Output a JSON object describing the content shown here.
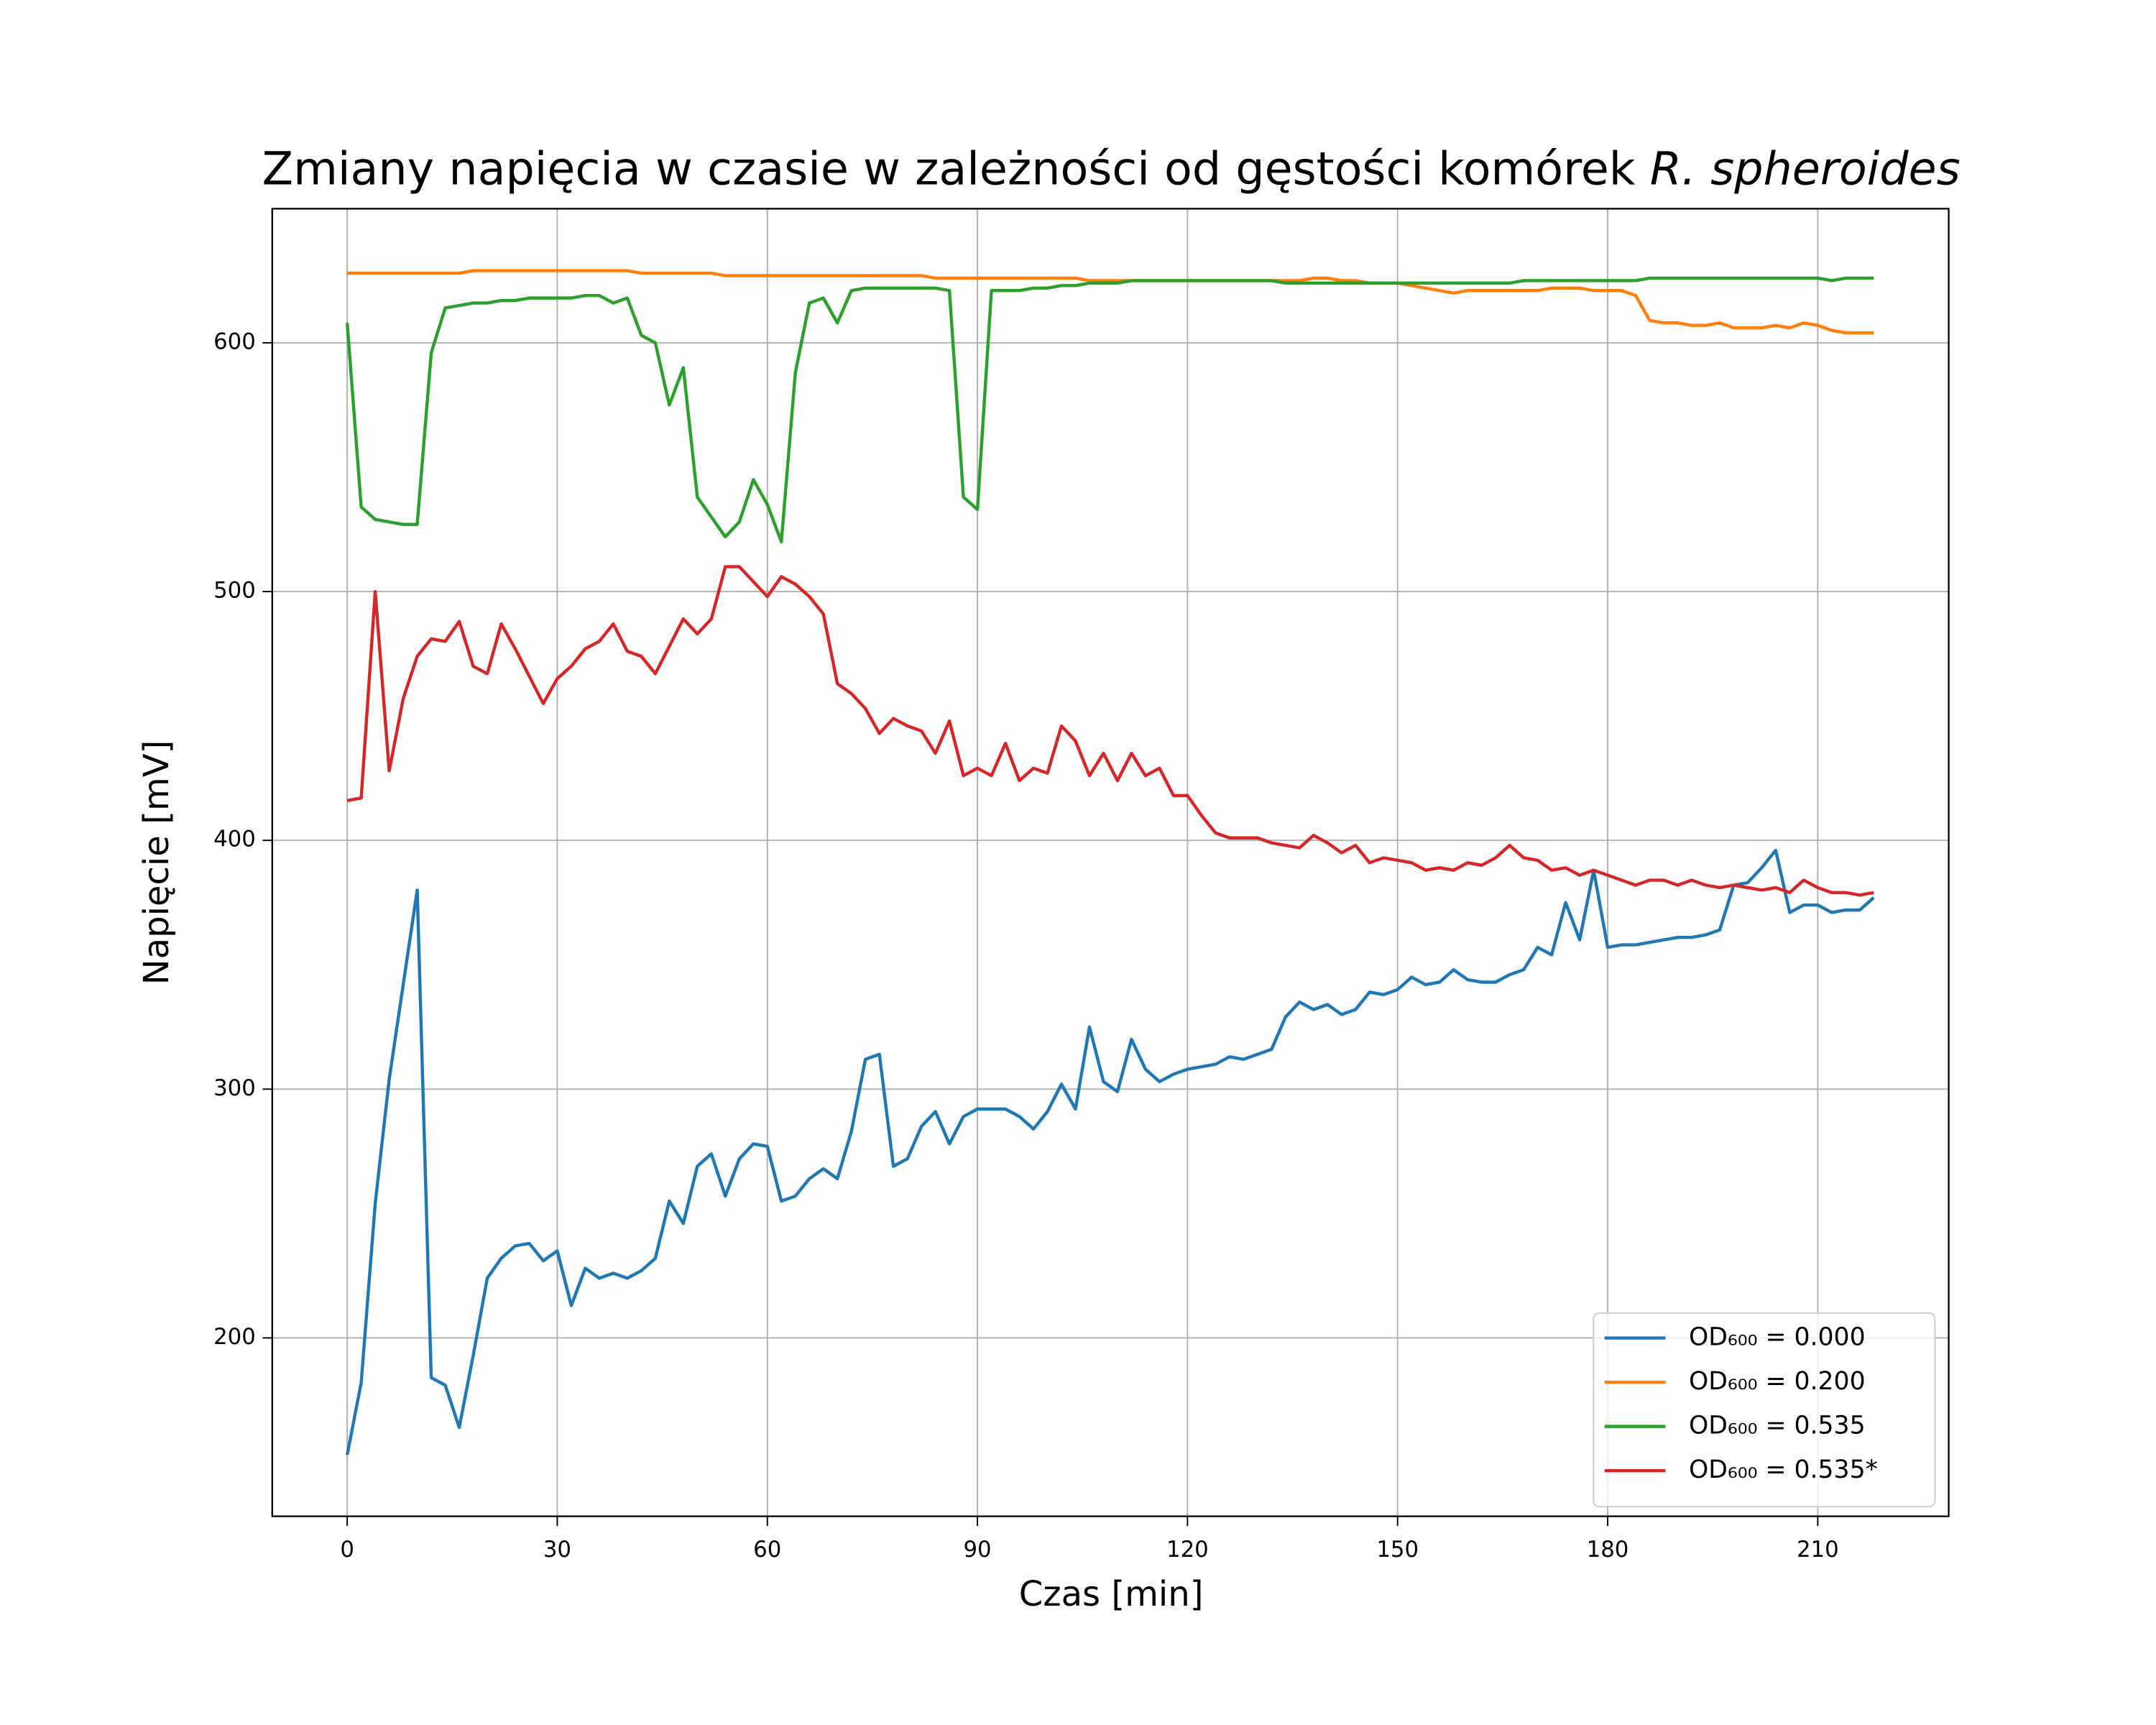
{
  "chart_data": {
    "type": "line",
    "title": [
      "Zmiany napięcia w czasie w zależności od gęstości komórek",
      "R. spheroides"
    ],
    "x_label": "Czas [min]",
    "y_label": "Napięcie [mV]",
    "xlim": [
      -10.7,
      228.7
    ],
    "ylim": [
      128.3,
      653.9
    ],
    "xticks": [
      0,
      30,
      60,
      90,
      120,
      150,
      180,
      210
    ],
    "yticks": [
      200,
      300,
      400,
      500,
      600
    ],
    "grid": true,
    "legend": "lower right",
    "x": [
      0,
      2,
      4,
      6,
      8,
      10,
      12,
      14,
      16,
      18,
      20,
      22,
      24,
      26,
      28,
      30,
      32,
      34,
      36,
      38,
      40,
      42,
      44,
      46,
      48,
      50,
      52,
      54,
      56,
      58,
      60,
      62,
      64,
      66,
      68,
      70,
      72,
      74,
      76,
      78,
      80,
      82,
      84,
      86,
      88,
      90,
      92,
      94,
      96,
      98,
      100,
      102,
      104,
      106,
      108,
      110,
      112,
      114,
      116,
      118,
      120,
      122,
      124,
      126,
      128,
      130,
      132,
      134,
      136,
      138,
      140,
      142,
      144,
      146,
      148,
      150,
      152,
      154,
      156,
      158,
      160,
      162,
      164,
      166,
      168,
      170,
      172,
      174,
      176,
      178,
      180,
      182,
      184,
      186,
      188,
      190,
      192,
      194,
      196,
      198,
      200,
      202,
      204,
      206,
      208,
      210,
      212,
      214,
      216,
      218
    ],
    "series": [
      {
        "name": "OD₆₀₀ = 0.000",
        "color": "#1f77b4",
        "values": [
          153,
          182,
          254,
          304,
          342,
          380,
          184,
          181,
          164,
          193,
          224,
          232,
          237,
          238,
          231,
          235,
          213,
          228,
          224,
          226,
          224,
          227,
          232,
          255,
          246,
          269,
          274,
          257,
          272,
          278,
          277,
          255,
          257,
          264,
          268,
          264,
          283,
          312,
          314,
          269,
          272,
          285,
          291,
          278,
          289,
          292,
          292,
          292,
          289,
          284,
          291,
          302,
          292,
          325,
          303,
          299,
          320,
          308,
          303,
          306,
          308,
          309,
          310,
          313,
          312,
          314,
          316,
          329,
          335,
          332,
          334,
          330,
          332,
          339,
          338,
          340,
          345,
          342,
          343,
          348,
          344,
          343,
          343,
          346,
          348,
          357,
          354,
          375,
          360,
          388,
          357,
          358,
          358,
          359,
          360,
          361,
          361,
          362,
          364,
          382,
          383,
          389,
          396,
          371,
          374,
          374,
          371,
          372,
          372,
          377
        ]
      },
      {
        "name": "OD₆₀₀ = 0.200",
        "color": "#ff7f0e",
        "values": [
          628,
          628,
          628,
          628,
          628,
          628,
          628,
          628,
          628,
          629,
          629,
          629,
          629,
          629,
          629,
          629,
          629,
          629,
          629,
          629,
          629,
          628,
          628,
          628,
          628,
          628,
          628,
          627,
          627,
          627,
          627,
          627,
          627,
          627,
          627,
          627,
          627,
          627,
          627,
          627,
          627,
          627,
          626,
          626,
          626,
          626,
          626,
          626,
          626,
          626,
          626,
          626,
          626,
          625,
          625,
          625,
          625,
          625,
          625,
          625,
          625,
          625,
          625,
          625,
          625,
          625,
          625,
          625,
          625,
          626,
          626,
          625,
          625,
          624,
          624,
          624,
          623,
          622,
          621,
          620,
          621,
          621,
          621,
          621,
          621,
          621,
          622,
          622,
          622,
          621,
          621,
          621,
          619,
          609,
          608,
          608,
          607,
          607,
          608,
          606,
          606,
          606,
          607,
          606,
          608,
          607,
          605,
          604,
          604,
          604
        ]
      },
      {
        "name": "OD₆₀₀ = 0.535",
        "color": "#2ca02c",
        "values": [
          608,
          534,
          529,
          528,
          527,
          527,
          596,
          614,
          615,
          616,
          616,
          617,
          617,
          618,
          618,
          618,
          618,
          619,
          619,
          616,
          618,
          603,
          600,
          575,
          590,
          538,
          530,
          522,
          528,
          545,
          535,
          520,
          588,
          616,
          618,
          608,
          621,
          622,
          622,
          622,
          622,
          622,
          622,
          621,
          538,
          533,
          621,
          621,
          621,
          622,
          622,
          623,
          623,
          624,
          624,
          624,
          625,
          625,
          625,
          625,
          625,
          625,
          625,
          625,
          625,
          625,
          625,
          624,
          624,
          624,
          624,
          624,
          624,
          624,
          624,
          624,
          624,
          624,
          624,
          624,
          624,
          624,
          624,
          624,
          625,
          625,
          625,
          625,
          625,
          625,
          625,
          625,
          625,
          626,
          626,
          626,
          626,
          626,
          626,
          626,
          626,
          626,
          626,
          626,
          626,
          626,
          625,
          626,
          626,
          626
        ]
      },
      {
        "name": "OD₆₀₀ = 0.535*",
        "color": "#d62728",
        "values": [
          416,
          417,
          500,
          428,
          457,
          474,
          481,
          480,
          488,
          470,
          467,
          487,
          477,
          466,
          455,
          465,
          470,
          477,
          480,
          487,
          476,
          474,
          467,
          478,
          489,
          483,
          489,
          510,
          510,
          504,
          498,
          506,
          503,
          498,
          491,
          463,
          459,
          453,
          443,
          449,
          446,
          444,
          435,
          448,
          426,
          429,
          426,
          439,
          424,
          429,
          427,
          446,
          440,
          426,
          435,
          424,
          435,
          426,
          429,
          418,
          418,
          410,
          403,
          401,
          401,
          401,
          399,
          398,
          397,
          402,
          399,
          395,
          398,
          391,
          393,
          392,
          391,
          388,
          389,
          388,
          391,
          390,
          393,
          398,
          393,
          392,
          388,
          389,
          386,
          388,
          386,
          384,
          382,
          384,
          384,
          382,
          384,
          382,
          381,
          382,
          381,
          380,
          381,
          379,
          384,
          381,
          379,
          379,
          378,
          379
        ]
      }
    ]
  }
}
